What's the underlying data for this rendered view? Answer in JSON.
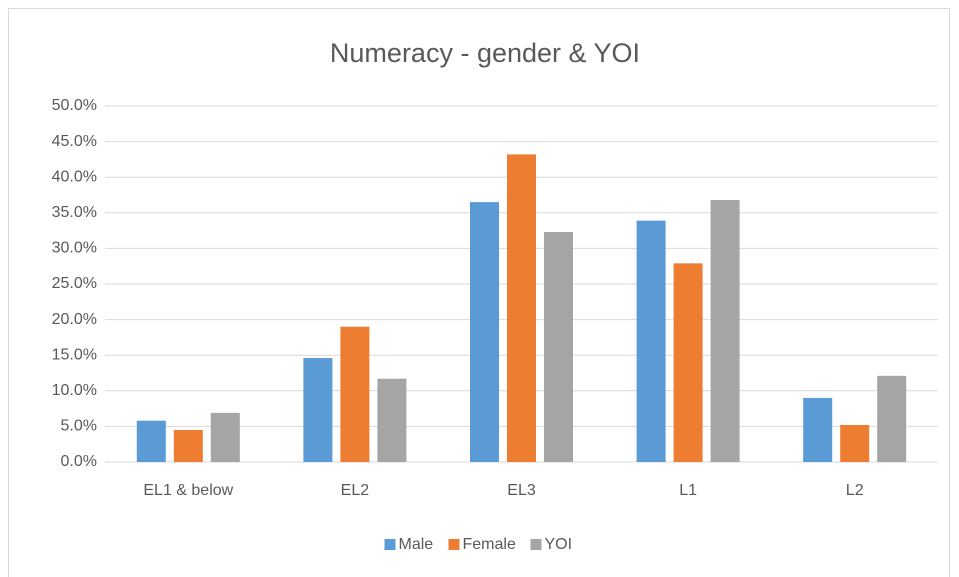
{
  "chart_data": {
    "type": "bar",
    "title": "Numeracy - gender & YOI",
    "categories": [
      "EL1 & below",
      "EL2",
      "EL3",
      "L1",
      "L2"
    ],
    "series": [
      {
        "name": "Male",
        "color": "#5b9bd5",
        "values": [
          5.8,
          14.6,
          36.5,
          33.9,
          9.0
        ]
      },
      {
        "name": "Female",
        "color": "#ed7d31",
        "values": [
          4.5,
          19.0,
          43.2,
          27.9,
          5.2
        ]
      },
      {
        "name": "YOI",
        "color": "#a5a5a5",
        "values": [
          6.9,
          11.7,
          32.3,
          36.8,
          12.1
        ]
      }
    ],
    "ylim": [
      0,
      50
    ],
    "yticks": [
      {
        "value": 0,
        "label": "0.0%"
      },
      {
        "value": 5,
        "label": "5.0%"
      },
      {
        "value": 10,
        "label": "10.0%"
      },
      {
        "value": 15,
        "label": "15.0%"
      },
      {
        "value": 20,
        "label": "20.0%"
      },
      {
        "value": 25,
        "label": "25.0%"
      },
      {
        "value": 30,
        "label": "30.0%"
      },
      {
        "value": 35,
        "label": "35.0%"
      },
      {
        "value": 40,
        "label": "40.0%"
      },
      {
        "value": 45,
        "label": "45.0%"
      },
      {
        "value": 50,
        "label": "50.0%"
      }
    ],
    "grid": true,
    "legend": "bottom"
  }
}
